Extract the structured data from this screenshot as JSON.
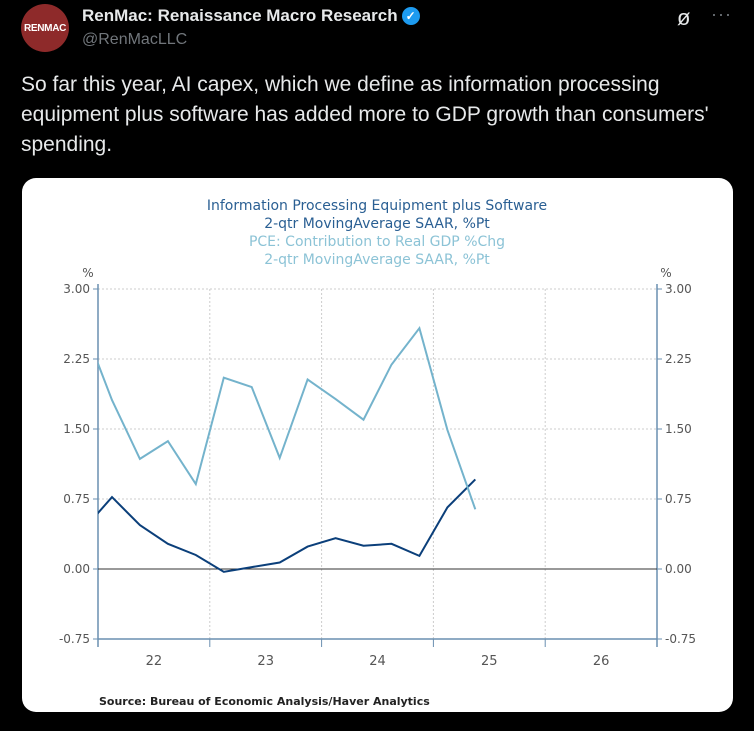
{
  "tweet": {
    "avatar_text": "RENMAC",
    "display_name": "RenMac: Renaissance Macro Research",
    "verified_icon": "verified-badge-icon",
    "handle": "@RenMacLLC",
    "text": "So far this year, AI capex, which we define as information processing equipment plus software has added more to GDP growth than consumers' spending.",
    "grok_icon": "grok-icon",
    "more_icon": "more-dots-icon",
    "more_label": "···"
  },
  "chart_data": {
    "type": "line",
    "title_lines": [
      {
        "text": "Information Processing Equipment plus Software",
        "series": 0
      },
      {
        "text": "2-qtr MovingAverage        SAAR, %Pt",
        "series": 0
      },
      {
        "text": "PCE: Contribution to Real GDP %Chg",
        "series": 1
      },
      {
        "text": "2-qtr MovingAverage     SAAR, %Pt",
        "series": 1
      }
    ],
    "ylabel_left": "%",
    "ylabel_right": "%",
    "ylim": [
      -0.75,
      3.0
    ],
    "yticks": [
      "3.00",
      "2.25",
      "1.50",
      "0.75",
      "0.00",
      "-0.75"
    ],
    "ytick_values": [
      3.0,
      2.25,
      1.5,
      0.75,
      0.0,
      -0.75
    ],
    "xlim": [
      "2022Q1",
      "2026Q4"
    ],
    "xticks": [
      "22",
      "23",
      "24",
      "25",
      "26"
    ],
    "grid": true,
    "x": [
      "2021Q4",
      "2022Q1",
      "2022Q2",
      "2022Q3",
      "2022Q4",
      "2023Q1",
      "2023Q2",
      "2023Q3",
      "2023Q4",
      "2024Q1",
      "2024Q2",
      "2024Q3",
      "2024Q4",
      "2025Q1",
      "2025Q2"
    ],
    "series": [
      {
        "color": "#0b3f7a",
        "values": [
          0.43,
          0.77,
          0.47,
          0.27,
          0.15,
          -0.03,
          0.02,
          0.07,
          0.24,
          0.33,
          0.25,
          0.27,
          0.14,
          0.66,
          0.96
        ]
      },
      {
        "color": "#74b3cc",
        "values": [
          2.59,
          1.81,
          1.18,
          1.37,
          0.91,
          2.05,
          1.95,
          1.19,
          2.03,
          1.82,
          1.6,
          2.19,
          2.58,
          1.49,
          0.64
        ]
      }
    ],
    "source": "Source:  Bureau of Economic Analysis/Haver Analytics"
  }
}
